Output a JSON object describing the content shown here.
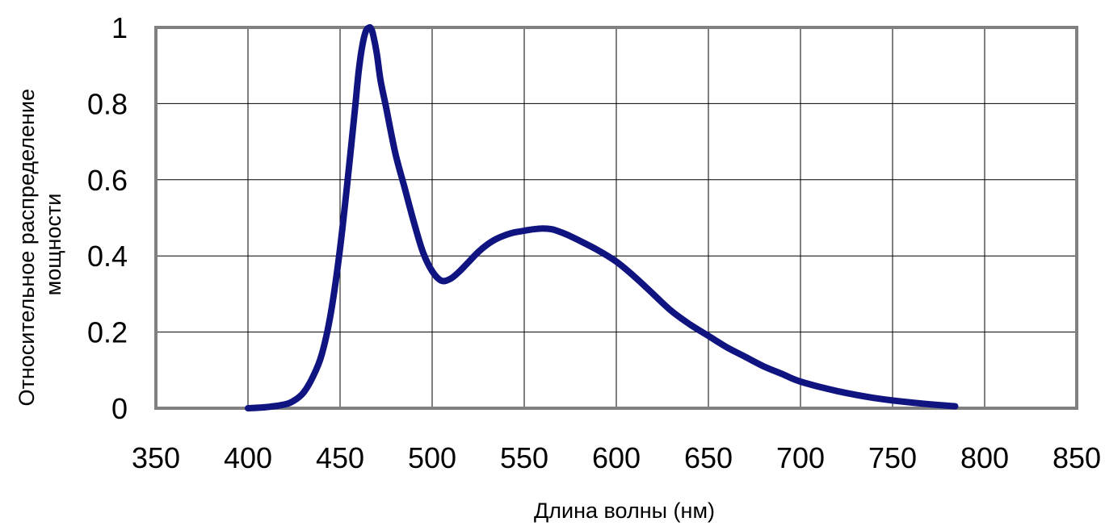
{
  "chart_data": {
    "type": "line",
    "xlabel": "Длина волны (нм)",
    "ylabel_lines": [
      "Относительное распределение",
      "мощности"
    ],
    "xlim": [
      350,
      850
    ],
    "ylim": [
      0,
      1
    ],
    "x_ticks": [
      350,
      400,
      450,
      500,
      550,
      600,
      650,
      700,
      750,
      800,
      850
    ],
    "y_ticks": [
      0,
      0.2,
      0.4,
      0.6,
      0.8,
      1
    ],
    "x_tick_labels": [
      "350",
      "400",
      "450",
      "500",
      "550",
      "600",
      "650",
      "700",
      "750",
      "800",
      "850"
    ],
    "y_tick_labels": [
      "0",
      "0.2",
      "0.4",
      "0.6",
      "0.8",
      "1"
    ],
    "grid": true,
    "series": [
      {
        "color": "#0f1480",
        "x": [
          400,
          410,
          420,
          425,
          430,
          435,
          440,
          445,
          450,
          455,
          458,
          460,
          462,
          464,
          466,
          467,
          468,
          470,
          472,
          475,
          480,
          485,
          490,
          495,
          500,
          505,
          510,
          515,
          520,
          525,
          530,
          535,
          540,
          545,
          550,
          555,
          560,
          565,
          570,
          575,
          580,
          590,
          600,
          610,
          620,
          630,
          640,
          650,
          660,
          670,
          680,
          690,
          700,
          720,
          740,
          760,
          784
        ],
        "y": [
          0,
          0.003,
          0.01,
          0.02,
          0.04,
          0.08,
          0.14,
          0.25,
          0.42,
          0.64,
          0.78,
          0.88,
          0.95,
          0.99,
          1.0,
          0.995,
          0.98,
          0.93,
          0.86,
          0.79,
          0.67,
          0.58,
          0.49,
          0.41,
          0.36,
          0.335,
          0.34,
          0.36,
          0.385,
          0.41,
          0.43,
          0.445,
          0.455,
          0.462,
          0.466,
          0.47,
          0.472,
          0.47,
          0.462,
          0.452,
          0.44,
          0.415,
          0.385,
          0.345,
          0.3,
          0.255,
          0.22,
          0.19,
          0.16,
          0.135,
          0.11,
          0.09,
          0.07,
          0.045,
          0.027,
          0.015,
          0.005
        ]
      }
    ]
  }
}
